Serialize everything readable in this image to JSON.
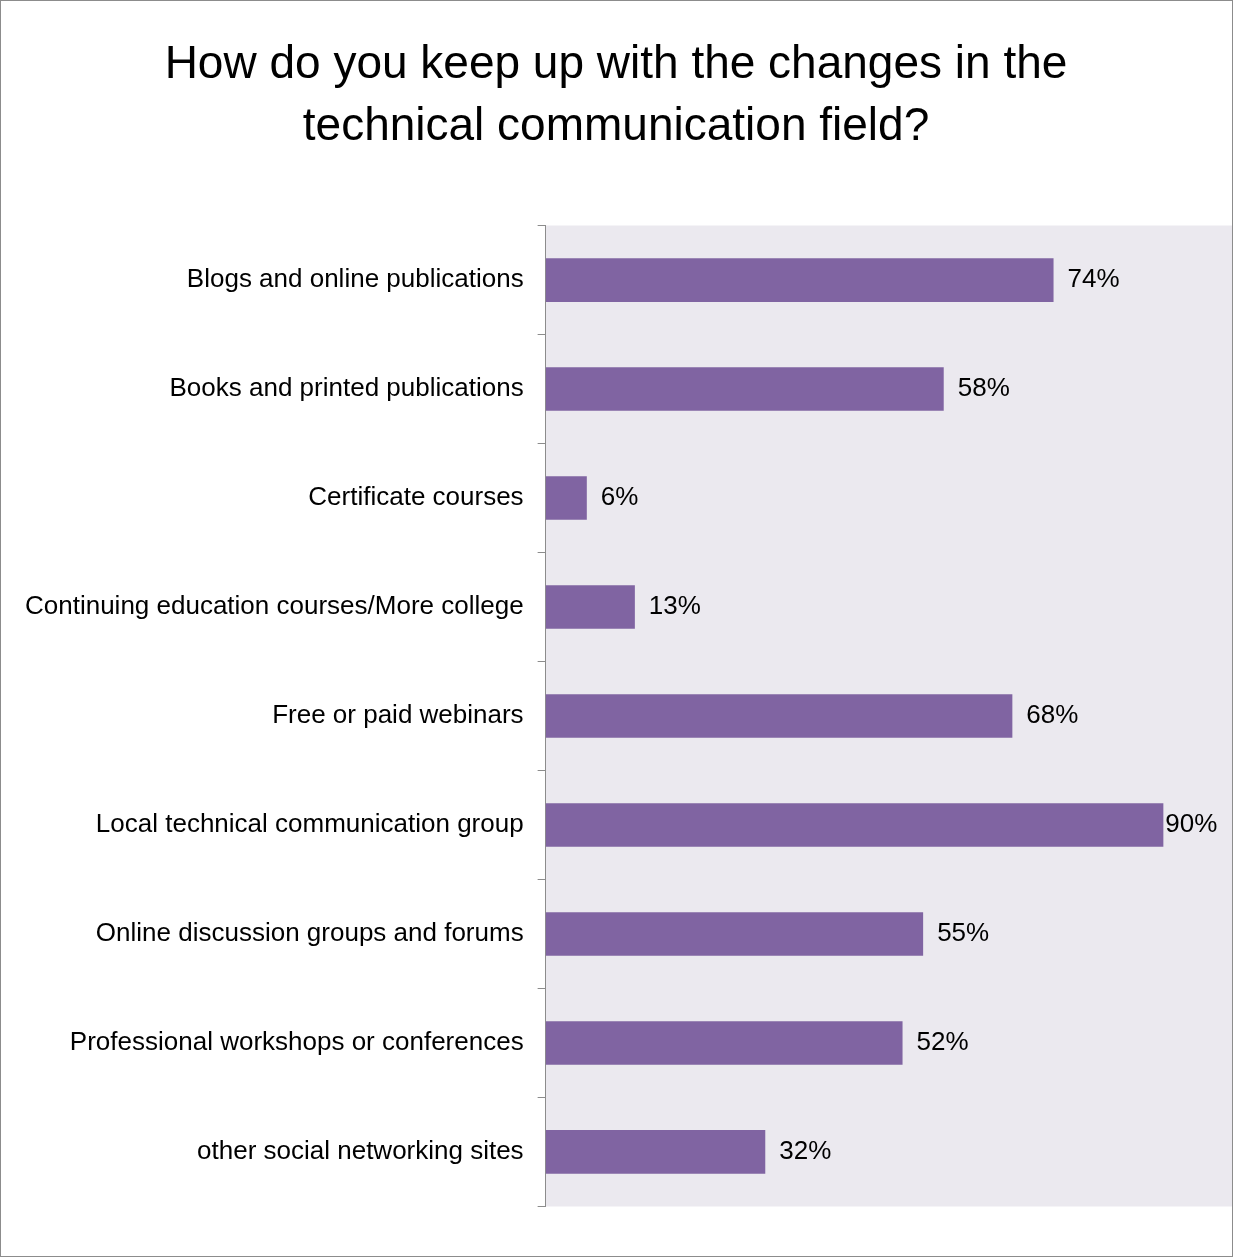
{
  "chart_data": {
    "type": "bar",
    "orientation": "horizontal",
    "title": "How do you keep up with the changes in the technical communication field?",
    "categories": [
      "Blogs and online publications",
      "Books and printed publications",
      "Certificate courses",
      "Continuing education courses/More college",
      "Free or paid webinars",
      "Local technical communication group",
      "Online discussion groups and forums",
      "Professional workshops or conferences",
      "other social networking sites"
    ],
    "values": [
      74,
      58,
      6,
      13,
      68,
      90,
      55,
      52,
      32
    ],
    "value_labels": [
      "74%",
      "58%",
      "6%",
      "13%",
      "68%",
      "90%",
      "55%",
      "52%",
      "32%"
    ],
    "color": "#8064a2",
    "xlim": [
      0,
      100
    ],
    "tick_labels": "y",
    "legend": false
  }
}
